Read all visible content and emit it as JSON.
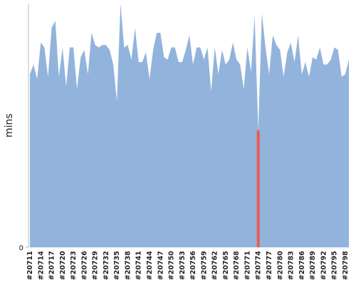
{
  "chart_data": {
    "type": "area",
    "y_label": "mins",
    "color": "#92b4dc",
    "highlight": {
      "index": 63,
      "color": "#ec5a55"
    },
    "categories": [
      "#20711",
      null,
      null,
      "#20714",
      null,
      null,
      "#20717",
      null,
      null,
      "#20720",
      null,
      null,
      "#20723",
      null,
      null,
      "#20726",
      null,
      null,
      "#20729",
      null,
      null,
      "#20732",
      null,
      null,
      "#20735",
      null,
      null,
      "#20738",
      null,
      null,
      "#20741",
      null,
      null,
      "#20744",
      null,
      null,
      "#20747",
      null,
      null,
      "#20750",
      null,
      null,
      "#20753",
      null,
      null,
      "#20756",
      null,
      null,
      "#20759",
      null,
      null,
      "#20762",
      null,
      null,
      "#20765",
      null,
      null,
      "#20768",
      null,
      null,
      "#20771",
      null,
      null,
      "#20774",
      null,
      null,
      "#20777",
      null,
      null,
      "#20780",
      null,
      null,
      "#20783",
      null,
      null,
      "#20786",
      null,
      null,
      "#20789",
      null,
      null,
      "#20792",
      null,
      null,
      "#20795",
      null,
      null,
      "#20798",
      null
    ],
    "values": [
      71,
      75,
      69,
      84,
      82,
      70,
      90,
      93,
      70,
      82,
      66,
      82,
      82,
      65,
      78,
      81,
      71,
      88,
      83,
      82,
      83,
      83,
      81,
      75,
      60,
      100,
      82,
      83,
      77,
      90,
      76,
      76,
      80,
      69,
      81,
      88,
      88,
      78,
      77,
      82,
      82,
      76,
      76,
      81,
      87,
      75,
      82,
      82,
      77,
      82,
      64,
      82,
      71,
      81,
      75,
      77,
      84,
      77,
      75,
      65,
      82,
      72,
      95,
      48,
      96,
      82,
      71,
      87,
      83,
      81,
      70,
      80,
      84,
      76,
      87,
      71,
      76,
      70,
      78,
      77,
      82,
      75,
      75,
      77,
      82,
      81,
      70,
      71,
      77
    ],
    "ylim": [
      0,
      100
    ],
    "yticks": [
      0
    ]
  }
}
